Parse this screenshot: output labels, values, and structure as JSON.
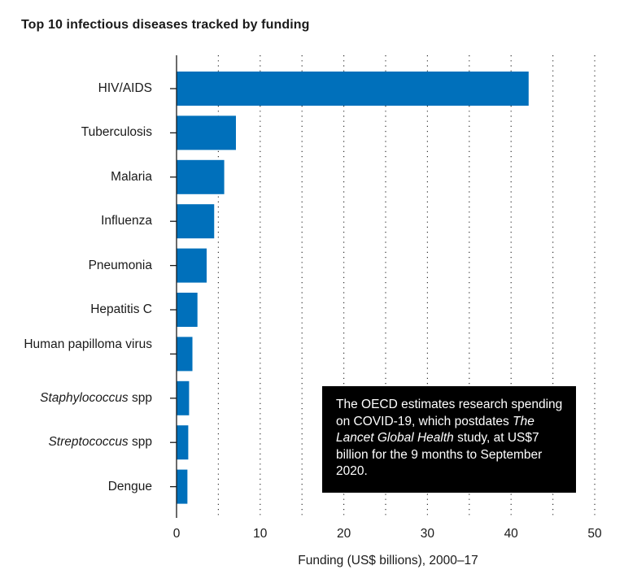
{
  "chart_data": {
    "type": "bar",
    "orientation": "horizontal",
    "title": "Top 10 infectious diseases tracked by funding",
    "xlabel": "Funding (US$ billions), 2000–17",
    "ylabel": "",
    "xlim": [
      0,
      50
    ],
    "xticks": [
      0,
      10,
      20,
      30,
      40,
      50
    ],
    "grid": "vertical dotted",
    "bar_color": "#0070bb",
    "categories": [
      {
        "pre": "",
        "italic": "",
        "post": "HIV/AIDS"
      },
      {
        "pre": "",
        "italic": "",
        "post": "Tuberculosis"
      },
      {
        "pre": "",
        "italic": "",
        "post": "Malaria"
      },
      {
        "pre": "",
        "italic": "",
        "post": "Influenza"
      },
      {
        "pre": "",
        "italic": "",
        "post": "Pneumonia"
      },
      {
        "pre": "",
        "italic": "",
        "post": "Hepatitis C"
      },
      {
        "pre": "",
        "italic": "",
        "post": "Human papilloma virus"
      },
      {
        "pre": "",
        "italic": "Staphylococcus",
        "post": " spp"
      },
      {
        "pre": "",
        "italic": "Streptococcus",
        "post": " spp"
      },
      {
        "pre": "",
        "italic": "",
        "post": "Dengue"
      }
    ],
    "values": [
      42.1,
      7.1,
      5.7,
      4.5,
      3.6,
      2.5,
      1.9,
      1.5,
      1.4,
      1.3
    ],
    "annotation": {
      "pre": "The OECD estimates research spending on COVID-19, which postdates ",
      "italic": "The Lancet Global Health",
      "post": " study, at US$7 billion for the 9 months to September 2020."
    }
  }
}
